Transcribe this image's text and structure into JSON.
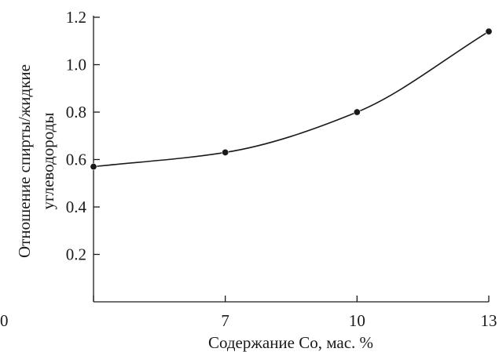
{
  "chart_data": {
    "type": "line",
    "x": [
      0,
      7,
      10,
      13
    ],
    "xticks": [
      "0",
      "7",
      "10",
      "13"
    ],
    "series": [
      {
        "values": [
          0.57,
          0.63,
          0.8,
          1.14
        ]
      }
    ],
    "xlabel": "Содержание Co, мас. %",
    "ylabel": [
      "Отношение спирты/жидкие",
      "углеводороды"
    ],
    "ylim": [
      0,
      1.2
    ],
    "yticks": [
      "0.2",
      "0.4",
      "0.6",
      "0.8",
      "1.0",
      "1.2"
    ],
    "grid": false,
    "x_scale": "categorical",
    "colors": {
      "line": "#1a1a1a",
      "marker": "#1a1a1a"
    }
  }
}
